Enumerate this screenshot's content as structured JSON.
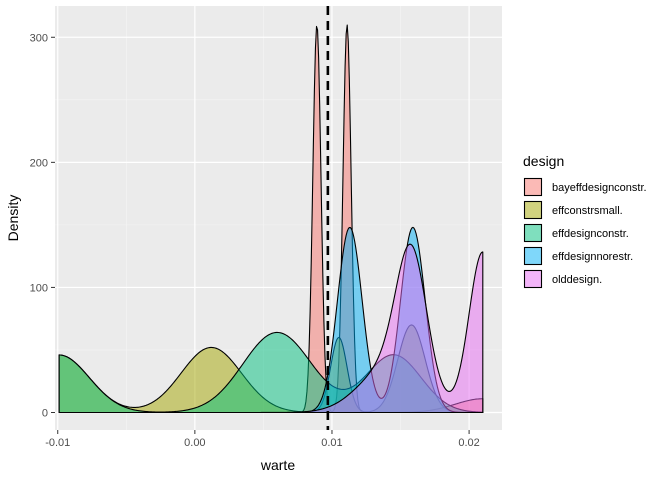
{
  "chart_data": {
    "type": "area",
    "subtype": "density",
    "title": "",
    "xlabel": "warte",
    "ylabel": "Density",
    "xlim": [
      -0.0102,
      0.0224
    ],
    "ylim": [
      -14,
      325
    ],
    "x_ticks": [
      -0.01,
      0.0,
      0.01,
      0.02
    ],
    "x_tick_labels": [
      "-0.01",
      "0.00",
      "0.01",
      "0.02"
    ],
    "y_ticks": [
      0,
      100,
      200,
      300
    ],
    "y_tick_labels": [
      "0",
      "100",
      "200",
      "300"
    ],
    "grid": true,
    "legend": {
      "title": "design",
      "position": "right"
    },
    "x_range": [
      -0.0099,
      0.021
    ],
    "vline": {
      "x": 0.0097,
      "style": "dashed",
      "color": "#000000"
    },
    "series": [
      {
        "name": "bayeffdesignconstr.",
        "color": "#F8766D",
        "components": [
          {
            "mean": 0.0089,
            "sd": 0.0003,
            "height": 310
          },
          {
            "mean": 0.0111,
            "sd": 0.0003,
            "height": 310
          },
          {
            "mean": 0.021,
            "sd": 0.002,
            "height": 11
          }
        ]
      },
      {
        "name": "effconstrsmall.",
        "color": "#A3A500",
        "components": [
          {
            "mean": -0.0099,
            "sd": 0.0022,
            "height": 46
          },
          {
            "mean": 0.0012,
            "sd": 0.0022,
            "height": 52
          },
          {
            "mean": 0.0105,
            "sd": 0.0006,
            "height": 60
          },
          {
            "mean": 0.0158,
            "sd": 0.001,
            "height": 70
          }
        ]
      },
      {
        "name": "effdesignconstr.",
        "color": "#00BF7D",
        "components": [
          {
            "mean": -0.0099,
            "sd": 0.0022,
            "height": 46
          },
          {
            "mean": 0.006,
            "sd": 0.0025,
            "height": 64
          },
          {
            "mean": 0.0145,
            "sd": 0.002,
            "height": 46
          }
        ]
      },
      {
        "name": "effdesignnorestr.",
        "color": "#00B0F6",
        "components": [
          {
            "mean": 0.0113,
            "sd": 0.0009,
            "height": 148
          },
          {
            "mean": 0.0159,
            "sd": 0.0009,
            "height": 148
          }
        ]
      },
      {
        "name": "olddesign.",
        "color": "#E76BF3",
        "components": [
          {
            "mean": 0.0143,
            "sd": 0.0022,
            "height": 38
          },
          {
            "mean": 0.0158,
            "sd": 0.0011,
            "height": 104
          },
          {
            "mean": 0.021,
            "sd": 0.001,
            "height": 128
          }
        ]
      }
    ]
  }
}
